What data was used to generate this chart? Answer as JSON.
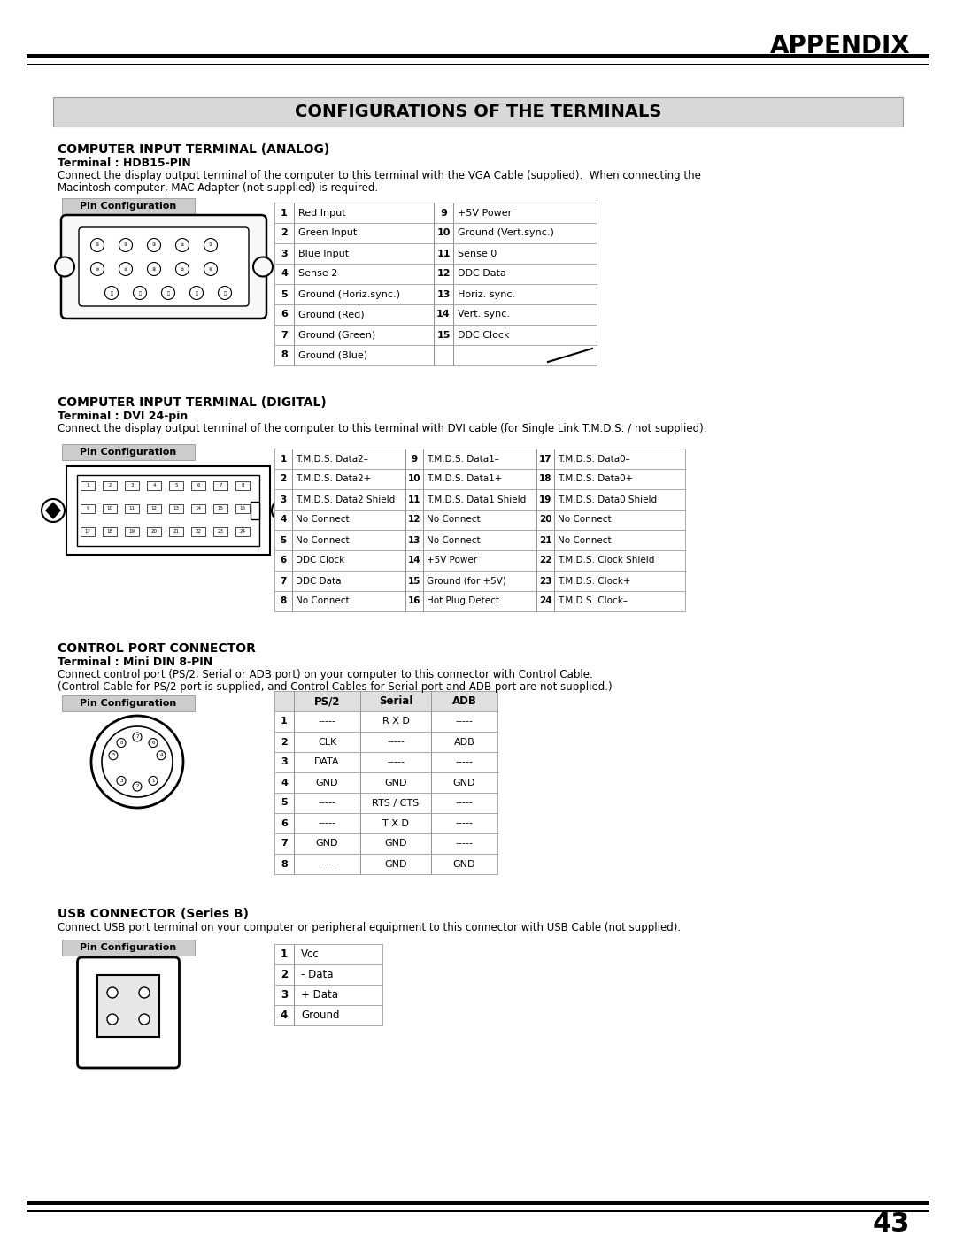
{
  "page_title": "APPENDIX",
  "main_title": "CONFIGURATIONS OF THE TERMINALS",
  "page_number": "43",
  "section1": {
    "title": "COMPUTER INPUT TERMINAL (ANALOG)",
    "terminal": "Terminal : HDB15-PIN",
    "desc1": "Connect the display output terminal of the computer to this terminal with the VGA Cable (supplied).  When connecting the",
    "desc2": "Macintosh computer, MAC Adapter (not supplied) is required.",
    "table": {
      "col1": [
        "1",
        "2",
        "3",
        "4",
        "5",
        "6",
        "7",
        "8"
      ],
      "col2": [
        "Red Input",
        "Green Input",
        "Blue Input",
        "Sense 2",
        "Ground (Horiz.sync.)",
        "Ground (Red)",
        "Ground (Green)",
        "Ground (Blue)"
      ],
      "col3": [
        "9",
        "10",
        "11",
        "12",
        "13",
        "14",
        "15",
        ""
      ],
      "col4": [
        "+5V Power",
        "Ground (Vert.sync.)",
        "Sense 0",
        "DDC Data",
        "Horiz. sync.",
        "Vert. sync.",
        "DDC Clock",
        ""
      ]
    }
  },
  "section2": {
    "title": "COMPUTER INPUT TERMINAL (DIGITAL)",
    "terminal": "Terminal : DVI 24-pin",
    "desc": "Connect the display output terminal of the computer to this terminal with DVI cable (for Single Link T.M.D.S. / not supplied).",
    "table": {
      "col1": [
        "1",
        "2",
        "3",
        "4",
        "5",
        "6",
        "7",
        "8"
      ],
      "col2": [
        "T.M.D.S. Data2–",
        "T.M.D.S. Data2+",
        "T.M.D.S. Data2 Shield",
        "No Connect",
        "No Connect",
        "DDC Clock",
        "DDC Data",
        "No Connect"
      ],
      "col3": [
        "9",
        "10",
        "11",
        "12",
        "13",
        "14",
        "15",
        "16"
      ],
      "col4": [
        "T.M.D.S. Data1–",
        "T.M.D.S. Data1+",
        "T.M.D.S. Data1 Shield",
        "No Connect",
        "No Connect",
        "+5V Power",
        "Ground (for +5V)",
        "Hot Plug Detect"
      ],
      "col5": [
        "17",
        "18",
        "19",
        "20",
        "21",
        "22",
        "23",
        "24"
      ],
      "col6": [
        "T.M.D.S. Data0–",
        "T.M.D.S. Data0+",
        "T.M.D.S. Data0 Shield",
        "No Connect",
        "No Connect",
        "T.M.D.S. Clock Shield",
        "T.M.D.S. Clock+",
        "T.M.D.S. Clock–"
      ]
    }
  },
  "section3": {
    "title": "CONTROL PORT CONNECTOR",
    "terminal": "Terminal : Mini DIN 8-PIN",
    "desc1": "Connect control port (PS/2, Serial or ADB port) on your computer to this connector with Control Cable.",
    "desc2": "(Control Cable for PS/2 port is supplied, and Control Cables for Serial port and ADB port are not supplied.)",
    "table": {
      "header": [
        "",
        "PS/2",
        "Serial",
        "ADB"
      ],
      "rows": [
        [
          "1",
          "-----",
          "R X D",
          "-----"
        ],
        [
          "2",
          "CLK",
          "-----",
          "ADB"
        ],
        [
          "3",
          "DATA",
          "-----",
          "-----"
        ],
        [
          "4",
          "GND",
          "GND",
          "GND"
        ],
        [
          "5",
          "-----",
          "RTS / CTS",
          "-----"
        ],
        [
          "6",
          "-----",
          "T X D",
          "-----"
        ],
        [
          "7",
          "GND",
          "GND",
          "-----"
        ],
        [
          "8",
          "-----",
          "GND",
          "GND"
        ]
      ]
    }
  },
  "section4": {
    "title": "USB CONNECTOR (Series B)",
    "desc": "Connect USB port terminal on your computer or peripheral equipment to this connector with USB Cable (not supplied).",
    "table": {
      "col1": [
        "1",
        "2",
        "3",
        "4"
      ],
      "col2": [
        "Vcc",
        "- Data",
        "+ Data",
        "Ground"
      ]
    }
  }
}
